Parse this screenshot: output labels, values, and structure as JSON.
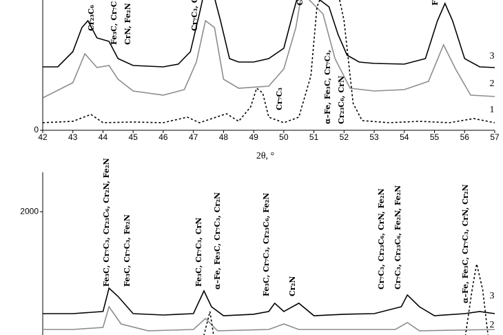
{
  "chart_data": [
    {
      "type": "line",
      "x_label": "2θ, °",
      "xlim": [
        42,
        57
      ],
      "xticks": [
        42,
        43,
        44,
        45,
        46,
        47,
        48,
        49,
        50,
        51,
        52,
        53,
        54,
        55,
        56,
        57
      ],
      "ylim": [
        0,
        1890
      ],
      "yticks": [
        0
      ],
      "series": [
        {
          "name": "3",
          "color": "#000000",
          "dash": false,
          "x": [
            42,
            42.5,
            43,
            43.3,
            43.5,
            43.8,
            44.2,
            44.5,
            45,
            46,
            46.5,
            46.9,
            47.2,
            47.4,
            47.6,
            47.9,
            48.2,
            48.5,
            49,
            49.5,
            50,
            50.3,
            50.5,
            51.2,
            51.5,
            51.8,
            52.1,
            52.5,
            53,
            54,
            54.7,
            55.1,
            55.35,
            55.6,
            56,
            56.5,
            57
          ],
          "values": [
            920,
            920,
            1140,
            1490,
            1590,
            1340,
            1290,
            1040,
            940,
            920,
            960,
            1140,
            1690,
            2090,
            2090,
            1590,
            1040,
            990,
            990,
            1040,
            1190,
            1690,
            2000,
            1890,
            1790,
            1390,
            1090,
            990,
            970,
            960,
            1040,
            1590,
            1840,
            1590,
            1040,
            920,
            910
          ]
        },
        {
          "name": "2",
          "color": "#8c8c8c",
          "dash": false,
          "x": [
            42,
            43,
            43.4,
            43.8,
            44.2,
            44.5,
            45,
            46,
            46.7,
            47.1,
            47.4,
            47.7,
            48,
            48.5,
            49.5,
            50,
            50.4,
            50.6,
            51.3,
            51.7,
            52.2,
            53,
            54,
            54.8,
            55.3,
            55.7,
            56.2,
            57
          ],
          "values": [
            470,
            690,
            1110,
            910,
            940,
            740,
            570,
            510,
            590,
            990,
            1590,
            1490,
            740,
            610,
            640,
            890,
            1490,
            2000,
            1690,
            1040,
            610,
            570,
            590,
            710,
            1240,
            890,
            510,
            490
          ]
        },
        {
          "name": "1",
          "color": "#000000",
          "dash": true,
          "x": [
            42,
            43,
            43.6,
            44,
            45,
            46,
            46.8,
            47.2,
            48.1,
            48.5,
            48.9,
            49.1,
            49.3,
            49.5,
            50,
            50.5,
            50.9,
            51.1,
            51.3,
            51.8,
            52,
            52.3,
            52.6,
            53.5,
            54.5,
            55.5,
            56.3,
            57
          ],
          "values": [
            110,
            130,
            230,
            110,
            120,
            110,
            190,
            110,
            240,
            130,
            340,
            610,
            540,
            190,
            110,
            190,
            790,
            1790,
            2000,
            2000,
            1590,
            390,
            140,
            110,
            130,
            110,
            170,
            110
          ]
        }
      ],
      "annotations": [
        "Cr₂₃C₆",
        "Fe₃C, Cr₇C",
        "CrN, Fe₂N",
        "Cr₇C₃, C",
        "Cr₇C₃",
        "C",
        "α–Fe, Fe₃C, Cr₇C₃,",
        "Cr₂₃C₆, CrN",
        "F"
      ]
    },
    {
      "type": "line",
      "xlim": [
        42,
        57
      ],
      "ylim": [
        400,
        2500
      ],
      "yticks": [
        2000
      ],
      "series": [
        {
          "name": "3",
          "color": "#000000",
          "dash": false,
          "x": [
            42,
            43,
            44,
            44.2,
            44.5,
            45,
            46,
            47,
            47.35,
            47.6,
            48,
            49,
            49.5,
            49.7,
            50,
            50.5,
            51,
            52,
            53,
            53.9,
            54.1,
            54.5,
            55,
            56,
            56.5,
            57
          ],
          "values": [
            706,
            706,
            733,
            1030,
            925,
            706,
            689,
            706,
            995,
            794,
            680,
            698,
            733,
            838,
            733,
            838,
            680,
            698,
            706,
            794,
            943,
            794,
            680,
            706,
            733,
            706
          ]
        },
        {
          "name": "2",
          "color": "#8c8c8c",
          "dash": false,
          "x": [
            42,
            43,
            44,
            44.2,
            44.6,
            45.5,
            47,
            47.4,
            47.8,
            49.5,
            50,
            50.5,
            53.7,
            54.1,
            54.5,
            57
          ],
          "values": [
            505,
            505,
            531,
            794,
            575,
            488,
            505,
            645,
            488,
            505,
            575,
            505,
            505,
            593,
            488,
            505
          ]
        },
        {
          "name": "1",
          "color": "#000000",
          "dash": true,
          "x": [
            42,
            47,
            47.3,
            47.55,
            47.7,
            55.5,
            56,
            56.25,
            56.4,
            56.6,
            56.8,
            57
          ],
          "values": [
            356,
            356,
            356,
            733,
            356,
            356,
            356,
            1012,
            1336,
            1012,
            356,
            356
          ]
        }
      ],
      "annotations": [
        "Fe₃C, Cr₇C₃, Cr₂₃C₆, Cr₂N, Fe₂N",
        "Fe₃C, Cr₇C₃, Fe₂N",
        "Fe₃C, Cr₇C₃, CrN",
        "α–Fe, Fe₃C, Cr₇C₃, Cr₂N",
        "Fe₃C, Cr₇C₃, Cr₂₃C₆, Fe₂N",
        "Cr₂N",
        "Cr₇C₃, Cr₂₃C₆, CrN, Fe₂N",
        "Cr₇C₃, Cr₂₃C₆, Fe₂N, Fe₂N",
        "α–Fe, Fe₃C, Cr₇C₃, CrN, Cr₂N"
      ]
    }
  ]
}
